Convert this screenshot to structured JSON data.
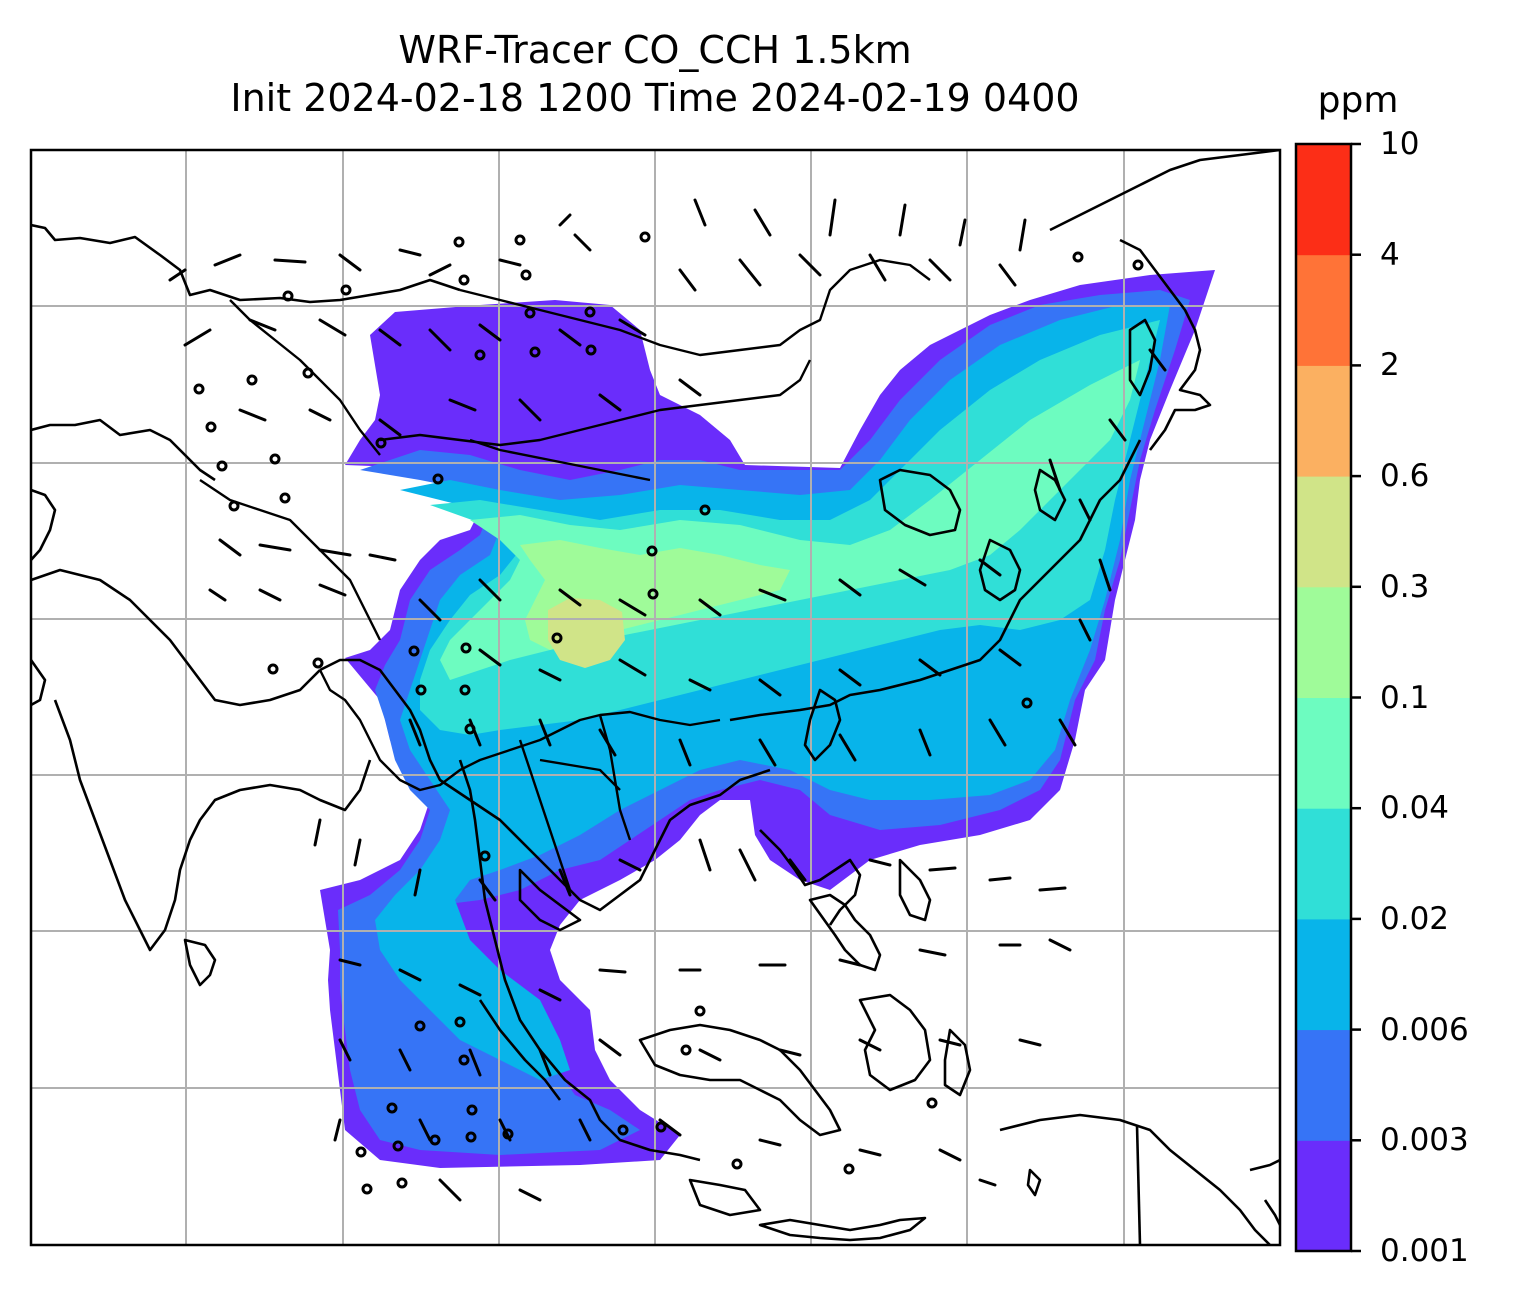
{
  "title": {
    "line1": "WRF-Tracer CO_CCH 1.5km",
    "line2": "Init 2024-02-18 1200 Time 2024-02-19 0400"
  },
  "colorbar": {
    "unit": "ppm",
    "ticks": [
      "0.001",
      "0.003",
      "0.006",
      "0.02",
      "0.04",
      "0.1",
      "0.3",
      "0.6",
      "2",
      "4",
      "10"
    ],
    "colors": [
      "#6a2dfb",
      "#3674f6",
      "#08b4ea",
      "#30dfd7",
      "#6dfcc0",
      "#9ffb99",
      "#d0e488",
      "#fbb061",
      "#ff7337",
      "#fc2e17"
    ]
  },
  "map": {
    "grid": true,
    "overlays": [
      "coastlines",
      "country-borders",
      "wind-barbs"
    ]
  }
}
